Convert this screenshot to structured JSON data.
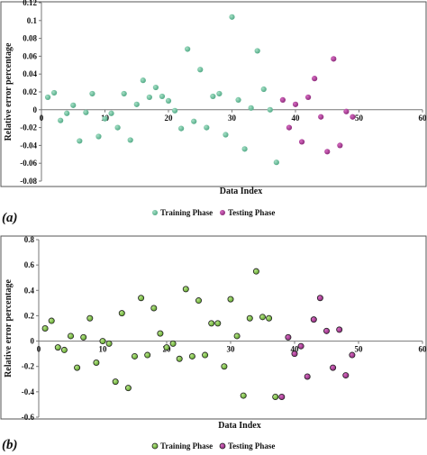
{
  "chart_data": [
    {
      "type": "scatter",
      "panel_label": "(a)",
      "xlabel": "Data Index",
      "ylabel": "Relative error percentage",
      "xlim": [
        0,
        60
      ],
      "ylim": [
        -0.08,
        0.12
      ],
      "xticks": [
        "0",
        "10",
        "20",
        "30",
        "40",
        "50",
        "60"
      ],
      "yticks": [
        "-0.08",
        "-0.06",
        "-0.04",
        "-0.02",
        "0",
        "0.02",
        "0.04",
        "0.06",
        "0.08",
        "0.1",
        "0.12"
      ],
      "grid": false,
      "legend_position": "bottom-center",
      "colors": {
        "training": "#6dbf9c",
        "testing": "#a0338a"
      },
      "series": [
        {
          "name": "Training Phase",
          "x": [
            1,
            2,
            3,
            4,
            5,
            6,
            7,
            8,
            9,
            10,
            11,
            12,
            13,
            14,
            15,
            16,
            17,
            18,
            19,
            20,
            21,
            22,
            23,
            24,
            25,
            26,
            27,
            28,
            29,
            30,
            31,
            32,
            33,
            34,
            35,
            36,
            37
          ],
          "y": [
            0.014,
            0.019,
            -0.012,
            -0.004,
            0.005,
            -0.035,
            -0.003,
            0.018,
            -0.03,
            -0.01,
            -0.004,
            -0.02,
            0.018,
            -0.034,
            0.006,
            0.033,
            0.014,
            0.025,
            0.015,
            0.01,
            -0.001,
            -0.021,
            0.068,
            -0.013,
            0.045,
            -0.02,
            0.015,
            0.018,
            -0.028,
            0.104,
            0.011,
            -0.044,
            0.002,
            0.066,
            0.023,
            0.0,
            -0.059
          ]
        },
        {
          "name": "Testing Phase",
          "x": [
            38,
            39,
            40,
            41,
            42,
            43,
            44,
            45,
            46,
            47,
            48,
            49
          ],
          "y": [
            0.011,
            -0.02,
            0.006,
            -0.036,
            0.014,
            0.035,
            -0.008,
            -0.047,
            0.057,
            -0.04,
            -0.002,
            -0.008
          ]
        }
      ]
    },
    {
      "type": "scatter",
      "panel_label": "(b)",
      "xlabel": "Data Index",
      "ylabel": "Relative error percentage",
      "xlim": [
        0,
        60
      ],
      "ylim": [
        -0.6,
        0.8
      ],
      "xticks": [
        "0",
        "10",
        "20",
        "30",
        "40",
        "50",
        "60"
      ],
      "yticks": [
        "-0.6",
        "-0.4",
        "-0.2",
        "0",
        "0.2",
        "0.4",
        "0.6",
        "0.8"
      ],
      "grid": false,
      "legend_position": "bottom-center",
      "colors": {
        "training": "#7cc13f",
        "testing": "#a0338a"
      },
      "series": [
        {
          "name": "Training Phase",
          "x": [
            1,
            2,
            3,
            4,
            5,
            6,
            7,
            8,
            9,
            10,
            11,
            12,
            13,
            14,
            15,
            16,
            17,
            18,
            19,
            20,
            21,
            22,
            23,
            24,
            25,
            26,
            27,
            28,
            29,
            30,
            31,
            32,
            33,
            34,
            35,
            36,
            37
          ],
          "y": [
            0.1,
            0.16,
            -0.05,
            -0.07,
            0.04,
            -0.21,
            0.03,
            0.18,
            -0.17,
            0.0,
            -0.02,
            -0.32,
            0.22,
            -0.37,
            -0.12,
            0.34,
            -0.11,
            0.26,
            0.06,
            -0.05,
            -0.02,
            -0.14,
            0.41,
            -0.12,
            0.32,
            -0.11,
            0.14,
            0.14,
            -0.2,
            0.33,
            0.04,
            -0.43,
            0.18,
            0.55,
            0.19,
            0.18,
            -0.44
          ]
        },
        {
          "name": "Testing Phase",
          "x": [
            38,
            39,
            40,
            41,
            42,
            43,
            44,
            45,
            46,
            47,
            48,
            49
          ],
          "y": [
            -0.44,
            0.03,
            -0.1,
            -0.04,
            -0.28,
            0.17,
            0.34,
            0.08,
            -0.21,
            0.09,
            -0.27,
            -0.11
          ]
        }
      ]
    }
  ]
}
